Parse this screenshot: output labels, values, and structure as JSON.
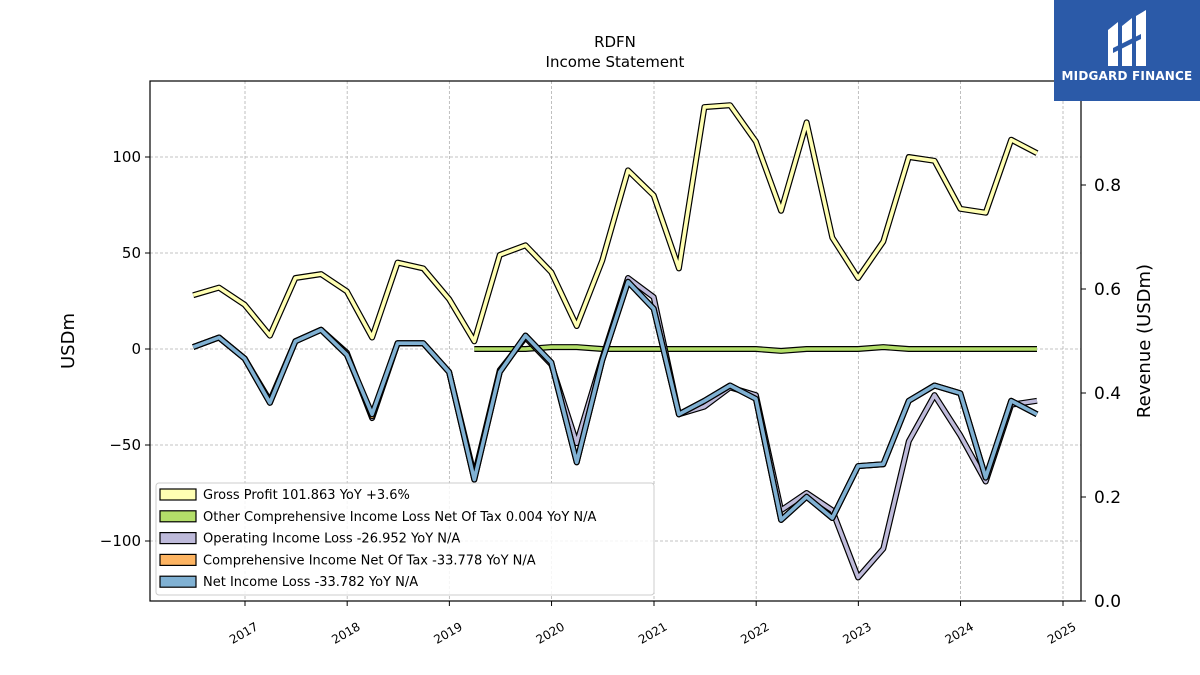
{
  "chart_data": {
    "type": "line",
    "title": "RDFN",
    "subtitle": "Income Statement",
    "ylabel": "USDm",
    "y2label": "Revenue (USDm)",
    "ylim": [
      -130,
      140
    ],
    "y2lim": [
      0.0,
      1.0
    ],
    "yticks": [
      100,
      50,
      0,
      -50,
      -100
    ],
    "ytick_labels": [
      "100",
      "50",
      "0",
      "−50",
      "−100"
    ],
    "y2ticks": [
      0.8,
      0.6,
      0.4,
      0.2,
      0.0
    ],
    "y2tick_labels": [
      "0.8",
      "0.6",
      "0.4",
      "0.2",
      "0.0"
    ],
    "xticks": [
      "2017",
      "2018",
      "2019",
      "2020",
      "2021",
      "2022",
      "2023",
      "2024",
      "2025"
    ],
    "grid": true,
    "legend_position": "lower-left",
    "x": [
      "2016-06-30",
      "2016-09-30",
      "2016-12-31",
      "2017-03-31",
      "2017-06-30",
      "2017-09-30",
      "2017-12-31",
      "2018-03-31",
      "2018-06-30",
      "2018-09-30",
      "2018-12-31",
      "2019-03-31",
      "2019-06-30",
      "2019-09-30",
      "2019-12-31",
      "2020-03-31",
      "2020-06-30",
      "2020-09-30",
      "2020-12-31",
      "2021-03-31",
      "2021-06-30",
      "2021-09-30",
      "2021-12-31",
      "2022-03-31",
      "2022-06-30",
      "2022-09-30",
      "2022-12-31",
      "2023-03-31",
      "2023-06-30",
      "2023-09-30",
      "2023-12-31",
      "2024-03-31",
      "2024-06-30",
      "2024-09-30"
    ],
    "series": [
      {
        "name": "Gross Profit",
        "legend": "Gross Profit  101.863 YoY +3.6%",
        "color": "#ffffb3",
        "values": [
          28,
          32,
          23,
          7,
          37,
          39,
          30,
          6,
          45,
          42,
          26,
          4,
          49,
          54,
          40,
          12,
          46,
          93,
          80,
          42,
          126,
          127,
          108,
          72,
          118,
          58,
          37,
          56,
          100,
          98,
          73,
          71,
          109,
          102
        ]
      },
      {
        "name": "Other Comprehensive Income Loss Net Of Tax",
        "legend": "Other Comprehensive Income Loss Net Of Tax  0.004 YoY N/A",
        "color": "#b3de69",
        "values": [
          null,
          null,
          null,
          null,
          null,
          null,
          null,
          null,
          null,
          null,
          null,
          0,
          0,
          0,
          1,
          1,
          0,
          0,
          0,
          0,
          0,
          0,
          0,
          -1,
          0,
          0,
          0,
          1,
          0,
          0,
          0,
          0,
          0,
          0
        ]
      },
      {
        "name": "Operating Income Loss",
        "legend": "Operating Income Loss  -26.952 YoY N/A",
        "color": "#bebada",
        "values": [
          1,
          6,
          -5,
          -27,
          4,
          10,
          -2,
          -36,
          3,
          3,
          -12,
          -66,
          -11,
          6,
          -8,
          -49,
          -5,
          37,
          27,
          -34,
          -30,
          -20,
          -24,
          -84,
          -75,
          -84,
          -119,
          -104,
          -48,
          -24,
          -45,
          -69,
          -29,
          -27
        ]
      },
      {
        "name": "Comprehensive Income Net Of Tax",
        "legend": "Comprehensive Income Net Of Tax  -33.778 YoY N/A",
        "color": "#fdb462",
        "values": [
          1,
          6,
          -5,
          -28,
          4,
          10,
          -3,
          -35,
          3,
          3,
          -12,
          -68,
          -12,
          7,
          -7,
          -59,
          -6,
          35,
          21,
          -34,
          -27,
          -19,
          -26,
          -89,
          -77,
          -88,
          -61,
          -60,
          -27,
          -19,
          -23,
          -67,
          -27,
          -34
        ]
      },
      {
        "name": "Net Income Loss",
        "legend": "Net Income Loss  -33.782 YoY N/A",
        "color": "#80b1d3",
        "values": [
          1,
          6,
          -5,
          -28,
          4,
          10,
          -3,
          -34,
          3,
          3,
          -12,
          -68,
          -12,
          7,
          -7,
          -59,
          -6,
          35,
          21,
          -34,
          -27,
          -19,
          -26,
          -89,
          -77,
          -88,
          -61,
          -60,
          -27,
          -19,
          -23,
          -67,
          -27,
          -34
        ]
      }
    ]
  },
  "brand": {
    "name": "MIDGARD FINANCE"
  }
}
